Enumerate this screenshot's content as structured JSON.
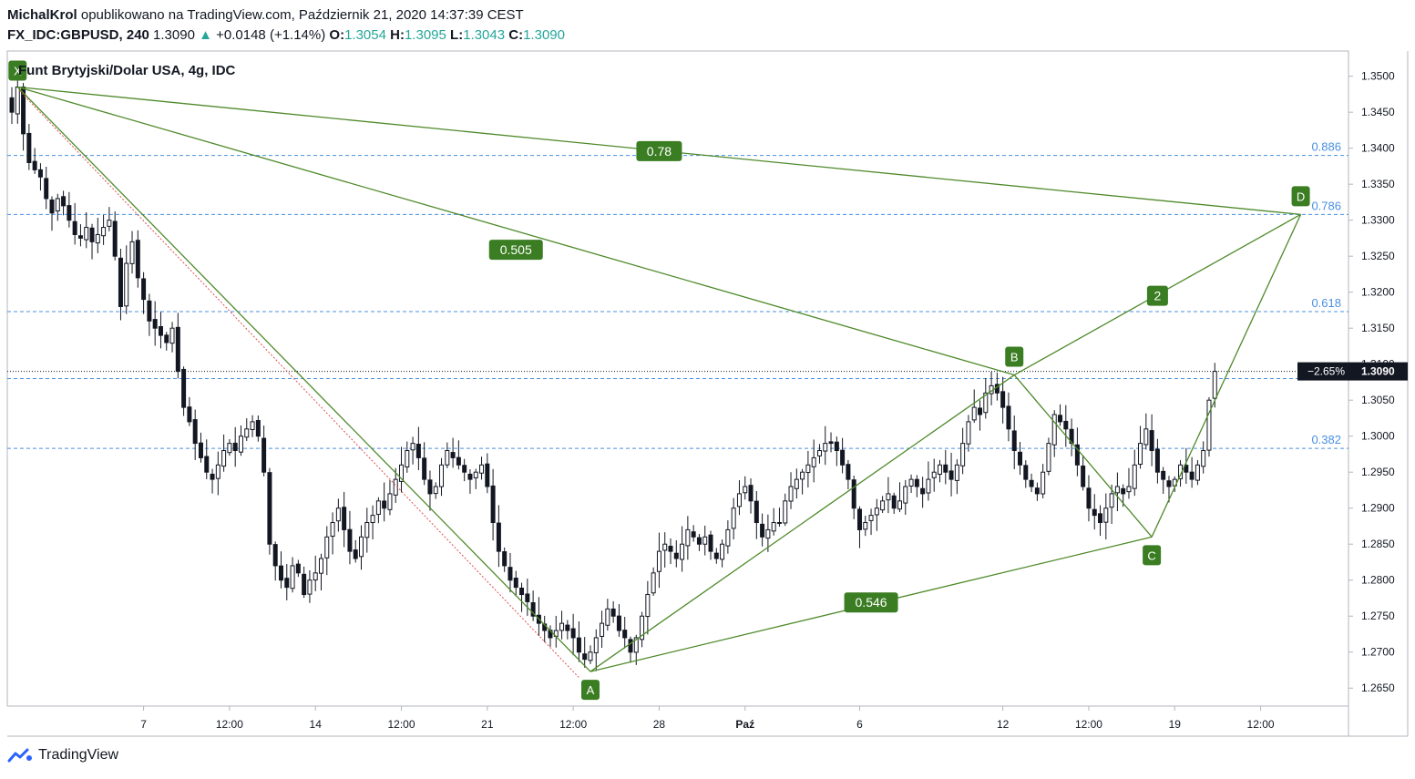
{
  "header": {
    "author": "MichalKrol",
    "published": "opublikowano na TradingView.com, Październik 21, 2020 14:37:39 CEST",
    "symbol": "FX_IDC:GBPUSD, 240",
    "last": "1.3090",
    "change": "+0.0148 (+1.14%)",
    "open_label": "O:",
    "open": "1.3054",
    "high_label": "H:",
    "high": "1.3095",
    "low_label": "L:",
    "low": "1.3043",
    "close_label": "C:",
    "close": "1.3090"
  },
  "footer": {
    "brand": "TradingView"
  },
  "colors": {
    "pattern": "#4f8a2b",
    "tag_bg": "#3b7d23",
    "fib": "#4a90e2",
    "candle": "#131722",
    "price_tag_bg": "#131722",
    "diagonal": "#e05050"
  },
  "chart_data": {
    "type": "candlestick",
    "title": "Funt Brytyjski/Dolar USA, 4g, IDC",
    "y_ticks": [
      "1.3500",
      "1.3450",
      "1.3400",
      "1.3350",
      "1.3300",
      "1.3250",
      "1.3200",
      "1.3150",
      "1.3100",
      "1.3050",
      "1.3000",
      "1.2950",
      "1.2900",
      "1.2850",
      "1.2800",
      "1.2750",
      "1.2700",
      "1.2650"
    ],
    "ylim": [
      1.2625,
      1.3535
    ],
    "x_ticks": [
      {
        "label": "7",
        "bar": 23
      },
      {
        "label": "12:00",
        "bar": 38
      },
      {
        "label": "14",
        "bar": 53
      },
      {
        "label": "12:00",
        "bar": 68
      },
      {
        "label": "21",
        "bar": 83
      },
      {
        "label": "12:00",
        "bar": 98
      },
      {
        "label": "28",
        "bar": 113
      },
      {
        "label": "Paź",
        "bar": 128
      },
      {
        "label": "6",
        "bar": 148
      },
      {
        "label": "12",
        "bar": 173
      },
      {
        "label": "12:00",
        "bar": 188
      },
      {
        "label": "19",
        "bar": 203
      },
      {
        "label": "12:00",
        "bar": 218
      }
    ],
    "current_price": "1.3090",
    "current_change": "−2.65%",
    "fib_levels": [
      {
        "label": "0.886",
        "price": 1.339
      },
      {
        "label": "0.786",
        "price": 1.3308
      },
      {
        "label": "0.618",
        "price": 1.3173
      },
      {
        "label": "",
        "price": 1.308
      },
      {
        "label": "0.382",
        "price": 1.2983
      }
    ],
    "pattern_points": [
      {
        "label": "X",
        "bar": 1,
        "price": 1.3485
      },
      {
        "label": "A",
        "bar": 101,
        "price": 1.2673
      },
      {
        "label": "B",
        "bar": 175,
        "price": 1.3085
      },
      {
        "label": "C",
        "bar": 199,
        "price": 1.286
      },
      {
        "label": "D",
        "bar": 225,
        "price": 1.3308
      }
    ],
    "ratios": [
      {
        "label": "0.78",
        "bar": 113,
        "price": 1.3396
      },
      {
        "label": "0.505",
        "bar": 88,
        "price": 1.3259
      },
      {
        "label": "2",
        "bar": 200,
        "price": 1.3195
      },
      {
        "label": "0.546",
        "bar": 150,
        "price": 1.2769
      }
    ],
    "closes": [
      1.345,
      1.3485,
      1.342,
      1.338,
      1.337,
      1.336,
      1.333,
      1.331,
      1.333,
      1.332,
      1.33,
      1.328,
      1.3275,
      1.329,
      1.327,
      1.328,
      1.329,
      1.33,
      1.325,
      1.318,
      1.324,
      1.327,
      1.322,
      1.319,
      1.316,
      1.315,
      1.314,
      1.313,
      1.315,
      1.309,
      1.304,
      1.302,
      1.299,
      1.297,
      1.295,
      1.294,
      1.296,
      1.298,
      1.299,
      1.298,
      1.3,
      1.301,
      1.302,
      1.3,
      1.295,
      1.285,
      1.282,
      1.28,
      1.279,
      1.282,
      1.281,
      1.278,
      1.28,
      1.281,
      1.283,
      1.286,
      1.288,
      1.29,
      1.287,
      1.284,
      1.283,
      1.286,
      1.288,
      1.289,
      1.291,
      1.29,
      1.292,
      1.294,
      1.296,
      1.298,
      1.299,
      1.297,
      1.294,
      1.292,
      1.293,
      1.296,
      1.298,
      1.297,
      1.296,
      1.295,
      1.294,
      1.295,
      1.296,
      1.293,
      1.288,
      1.284,
      1.282,
      1.28,
      1.279,
      1.278,
      1.277,
      1.275,
      1.274,
      1.273,
      1.272,
      1.273,
      1.274,
      1.273,
      1.272,
      1.27,
      1.269,
      1.27,
      1.272,
      1.274,
      1.276,
      1.275,
      1.273,
      1.272,
      1.27,
      1.272,
      1.275,
      1.278,
      1.281,
      1.284,
      1.285,
      1.284,
      1.283,
      1.285,
      1.287,
      1.286,
      1.285,
      1.286,
      1.284,
      1.283,
      1.285,
      1.287,
      1.29,
      1.292,
      1.293,
      1.291,
      1.288,
      1.286,
      1.287,
      1.288,
      1.288,
      1.291,
      1.293,
      1.294,
      1.295,
      1.296,
      1.297,
      1.298,
      1.299,
      1.299,
      1.298,
      1.296,
      1.294,
      1.29,
      1.287,
      1.288,
      1.289,
      1.29,
      1.291,
      1.292,
      1.29,
      1.291,
      1.293,
      1.294,
      1.293,
      1.292,
      1.294,
      1.295,
      1.296,
      1.295,
      1.294,
      1.296,
      1.299,
      1.302,
      1.304,
      1.303,
      1.306,
      1.307,
      1.306,
      1.304,
      1.301,
      1.298,
      1.296,
      1.294,
      1.293,
      1.292,
      1.295,
      1.299,
      1.303,
      1.302,
      1.301,
      1.299,
      1.296,
      1.293,
      1.29,
      1.289,
      1.288,
      1.29,
      1.292,
      1.293,
      1.292,
      1.293,
      1.296,
      1.299,
      1.301,
      1.298,
      1.295,
      1.294,
      1.293,
      1.294,
      1.296,
      1.295,
      1.294,
      1.296,
      1.298,
      1.305,
      1.309
    ]
  }
}
